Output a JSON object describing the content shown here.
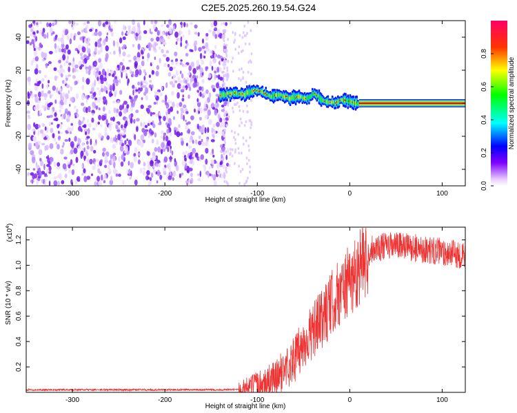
{
  "title": "C2E5.2025.260.19.54.G24",
  "chart_data": [
    {
      "type": "heatmap",
      "name": "spectrogram",
      "xlabel": "Height of straight line (km)",
      "ylabel": "Frequency (Hz)",
      "xlim": [
        -350,
        125
      ],
      "ylim": [
        -50,
        50
      ],
      "xticks": [
        -300,
        -200,
        -100,
        0,
        100
      ],
      "yticks": [
        -40,
        -20,
        0,
        20,
        40
      ],
      "colorbar": {
        "label": "Normalized spectral amplitude",
        "range": [
          0.0,
          1.0
        ],
        "ticks": [
          0.0,
          0.2,
          0.4,
          0.6,
          0.8
        ],
        "tick_labels": [
          "0.0",
          "0.2",
          "0.4",
          "0.6",
          "0.8"
        ]
      },
      "noise_region_km": [
        -350,
        -130
      ],
      "ridge": [
        {
          "x": -140,
          "f": 5
        },
        {
          "x": -125,
          "f": 6
        },
        {
          "x": -115,
          "f": 5
        },
        {
          "x": -108,
          "f": 7
        },
        {
          "x": -100,
          "f": 8
        },
        {
          "x": -92,
          "f": 6
        },
        {
          "x": -85,
          "f": 4
        },
        {
          "x": -75,
          "f": 5
        },
        {
          "x": -65,
          "f": 3
        },
        {
          "x": -55,
          "f": 4
        },
        {
          "x": -45,
          "f": 3
        },
        {
          "x": -38,
          "f": 6
        },
        {
          "x": -30,
          "f": 2
        },
        {
          "x": -22,
          "f": 1
        },
        {
          "x": -15,
          "f": 0
        },
        {
          "x": -8,
          "f": 2
        },
        {
          "x": 0,
          "f": 1
        },
        {
          "x": 10,
          "f": 0
        },
        {
          "x": 125,
          "f": 0
        }
      ]
    },
    {
      "type": "line",
      "name": "snr",
      "xlabel": "Height of straight line (km)",
      "ylabel": "SNR (10 * v/v)",
      "multiplier_label": "(x10",
      "multiplier_exp": "4",
      "multiplier_close": ")",
      "xlim": [
        -350,
        125
      ],
      "ylim": [
        0,
        1.3
      ],
      "xticks": [
        -300,
        -200,
        -100,
        0,
        100
      ],
      "yticks": [
        0.2,
        0.4,
        0.6,
        0.8,
        1.0,
        1.2
      ],
      "ytick_labels": [
        "0.2",
        "0.4",
        "0.6",
        "0.8",
        "1.0",
        "1.2"
      ],
      "color": "#ee3333",
      "trend": [
        {
          "x": -350,
          "y": 0.02
        },
        {
          "x": -120,
          "y": 0.02
        },
        {
          "x": -100,
          "y": 0.06
        },
        {
          "x": -80,
          "y": 0.12
        },
        {
          "x": -60,
          "y": 0.28
        },
        {
          "x": -45,
          "y": 0.45
        },
        {
          "x": -30,
          "y": 0.6
        },
        {
          "x": -15,
          "y": 0.78
        },
        {
          "x": 0,
          "y": 0.9
        },
        {
          "x": 15,
          "y": 1.08
        },
        {
          "x": 25,
          "y": 1.18
        },
        {
          "x": 50,
          "y": 1.2
        },
        {
          "x": 80,
          "y": 1.17
        },
        {
          "x": 100,
          "y": 1.15
        },
        {
          "x": 125,
          "y": 1.12
        }
      ]
    }
  ]
}
